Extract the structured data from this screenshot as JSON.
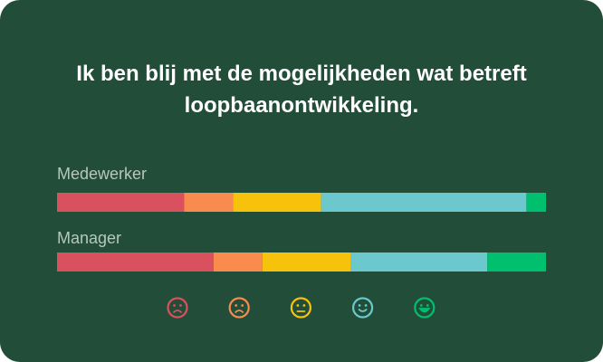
{
  "chart_data": {
    "type": "bar",
    "orientation": "horizontal",
    "stacked": true,
    "title": "Ik ben blij met de mogelijkheden wat betreft loopbaanontwikkeling.",
    "categories": [
      "Medewerker",
      "Manager"
    ],
    "xlim": [
      0,
      100
    ],
    "series": [
      {
        "color": "#d9515f",
        "values": [
          26,
          32
        ]
      },
      {
        "color": "#f98b4f",
        "values": [
          10,
          10
        ]
      },
      {
        "color": "#f7c20c",
        "values": [
          18,
          18
        ]
      },
      {
        "color": "#6bc8cd",
        "values": [
          42,
          28
        ]
      },
      {
        "color": "#00bf6f",
        "values": [
          4,
          12
        ]
      }
    ]
  }
}
